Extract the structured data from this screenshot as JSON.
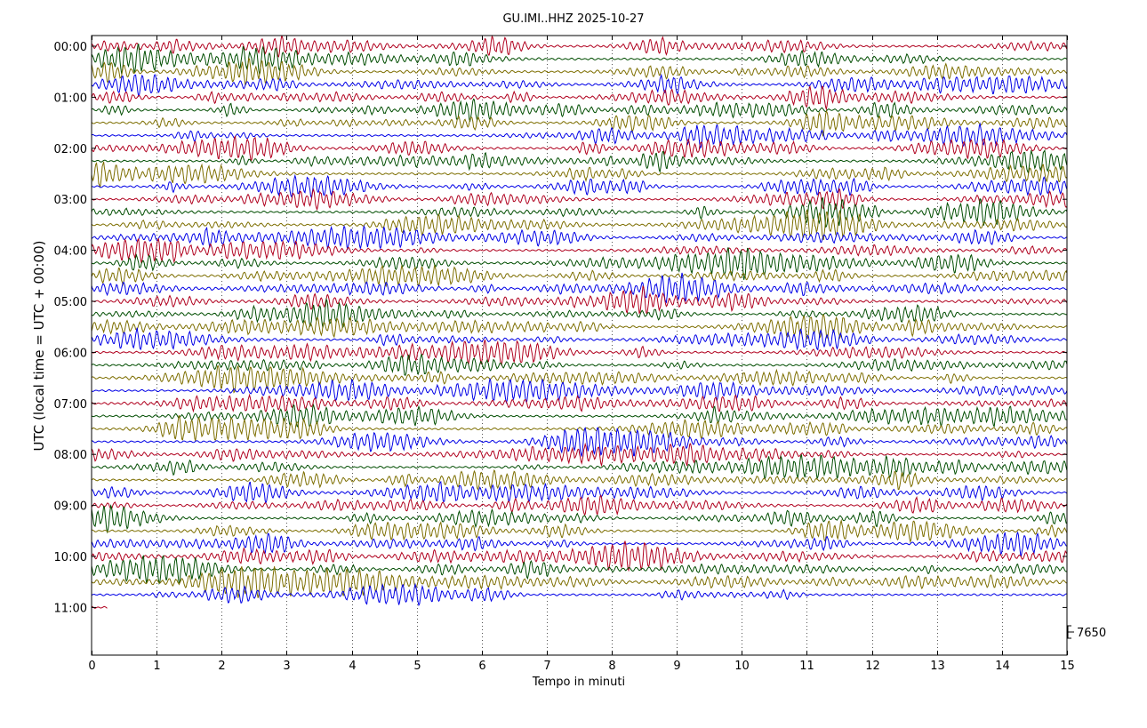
{
  "chart_data": {
    "type": "line",
    "title": "GU.IMI..HHZ 2025-10-27",
    "xlabel": "Tempo in minuti",
    "ylabel": "UTC (local time = UTC + 00:00)",
    "xlim": [
      0,
      15
    ],
    "xticks": [
      "0",
      "1",
      "2",
      "3",
      "4",
      "5",
      "6",
      "7",
      "8",
      "9",
      "10",
      "11",
      "12",
      "13",
      "14",
      "15"
    ],
    "hour_labels": [
      "00:00",
      "01:00",
      "02:00",
      "03:00",
      "04:00",
      "05:00",
      "06:00",
      "07:00",
      "08:00",
      "09:00",
      "10:00",
      "11:00"
    ],
    "trace_colors": [
      "#b0001e",
      "#004d00",
      "#7d6e00",
      "#0000e6"
    ],
    "traces_per_hour": 4,
    "trace_minutes": 15,
    "num_traces": 45,
    "last_trace_minutes": 0.25,
    "scale_label": "7650",
    "grid": "vertical dotted at each minute, below the traces",
    "legend": "none"
  }
}
